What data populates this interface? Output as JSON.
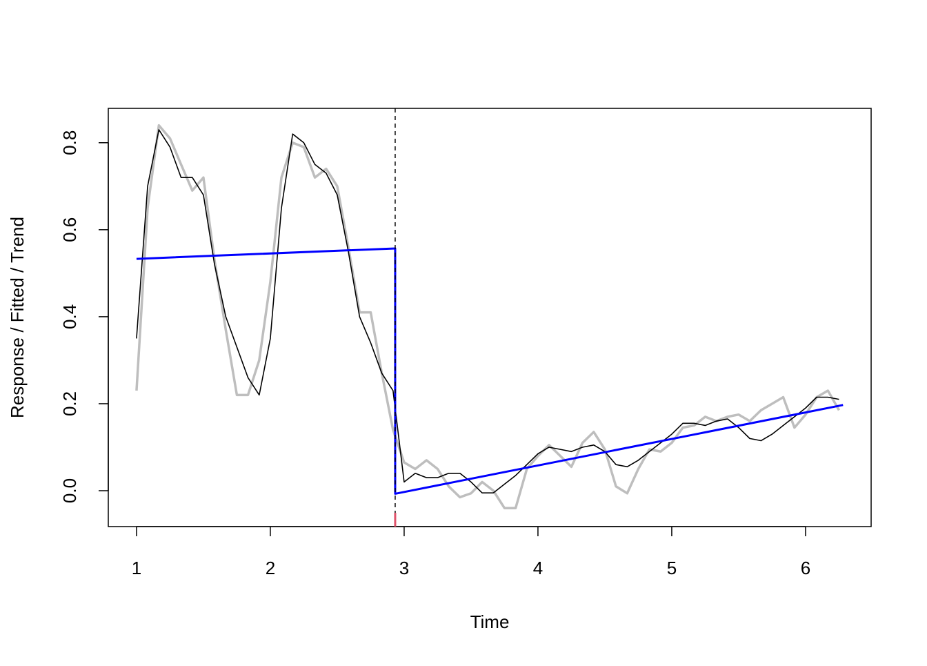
{
  "chart_data": {
    "type": "line",
    "xlabel": "Time",
    "ylabel": "Response / Fitted / Trend",
    "xlim": [
      0.789,
      6.49
    ],
    "ylim": [
      -0.0825,
      0.879
    ],
    "xticks": [
      1,
      2,
      3,
      4,
      5,
      6
    ],
    "yticks": [
      {
        "value": 0,
        "label": "0.0"
      },
      0.2,
      0.4,
      0.6,
      0.8
    ],
    "breakpoint": 2.933,
    "x": [
      1.0,
      1.083,
      1.167,
      1.25,
      1.333,
      1.417,
      1.5,
      1.583,
      1.667,
      1.75,
      1.833,
      1.917,
      2.0,
      2.083,
      2.167,
      2.25,
      2.333,
      2.417,
      2.5,
      2.583,
      2.667,
      2.75,
      2.833,
      2.917,
      3.0,
      3.083,
      3.167,
      3.25,
      3.333,
      3.417,
      3.5,
      3.583,
      3.667,
      3.75,
      3.833,
      3.917,
      4.0,
      4.083,
      4.167,
      4.25,
      4.333,
      4.417,
      4.5,
      4.583,
      4.667,
      4.75,
      4.833,
      4.917,
      5.0,
      5.083,
      5.167,
      5.25,
      5.333,
      5.417,
      5.5,
      5.583,
      5.667,
      5.75,
      5.833,
      5.917,
      6.0,
      6.083,
      6.167,
      6.25
    ],
    "series": [
      {
        "name": "Response",
        "color": "#bebebe",
        "values": [
          0.23,
          0.65,
          0.84,
          0.81,
          0.75,
          0.69,
          0.72,
          0.53,
          0.37,
          0.22,
          0.22,
          0.3,
          0.48,
          0.72,
          0.8,
          0.79,
          0.72,
          0.74,
          0.7,
          0.56,
          0.41,
          0.41,
          0.27,
          0.14,
          0.065,
          0.05,
          0.07,
          0.05,
          0.01,
          -0.015,
          -0.006,
          0.02,
          0.0,
          -0.04,
          -0.04,
          0.05,
          0.08,
          0.105,
          0.08,
          0.055,
          0.11,
          0.135,
          0.095,
          0.01,
          -0.006,
          0.05,
          0.095,
          0.09,
          0.11,
          0.145,
          0.15,
          0.17,
          0.16,
          0.17,
          0.175,
          0.16,
          0.185,
          0.2,
          0.215,
          0.145,
          0.175,
          0.215,
          0.23,
          0.185
        ]
      },
      {
        "name": "Fitted",
        "color": "#000000",
        "values": [
          0.35,
          0.7,
          0.83,
          0.79,
          0.72,
          0.72,
          0.68,
          0.52,
          0.4,
          0.33,
          0.26,
          0.22,
          0.35,
          0.65,
          0.82,
          0.8,
          0.75,
          0.73,
          0.68,
          0.55,
          0.4,
          0.34,
          0.27,
          0.23,
          0.02,
          0.04,
          0.03,
          0.03,
          0.04,
          0.04,
          0.02,
          -0.005,
          -0.005,
          0.015,
          0.035,
          0.06,
          0.085,
          0.1,
          0.095,
          0.09,
          0.1,
          0.105,
          0.09,
          0.06,
          0.055,
          0.07,
          0.09,
          0.11,
          0.13,
          0.155,
          0.155,
          0.15,
          0.16,
          0.165,
          0.145,
          0.12,
          0.115,
          0.13,
          0.15,
          0.17,
          0.19,
          0.215,
          0.215,
          0.21
        ]
      }
    ],
    "trend": {
      "name": "Trend",
      "color": "#0000ff",
      "x": [
        1.0,
        2.933,
        2.933,
        6.28
      ],
      "values": [
        0.533,
        0.557,
        -0.007,
        0.197
      ]
    }
  }
}
